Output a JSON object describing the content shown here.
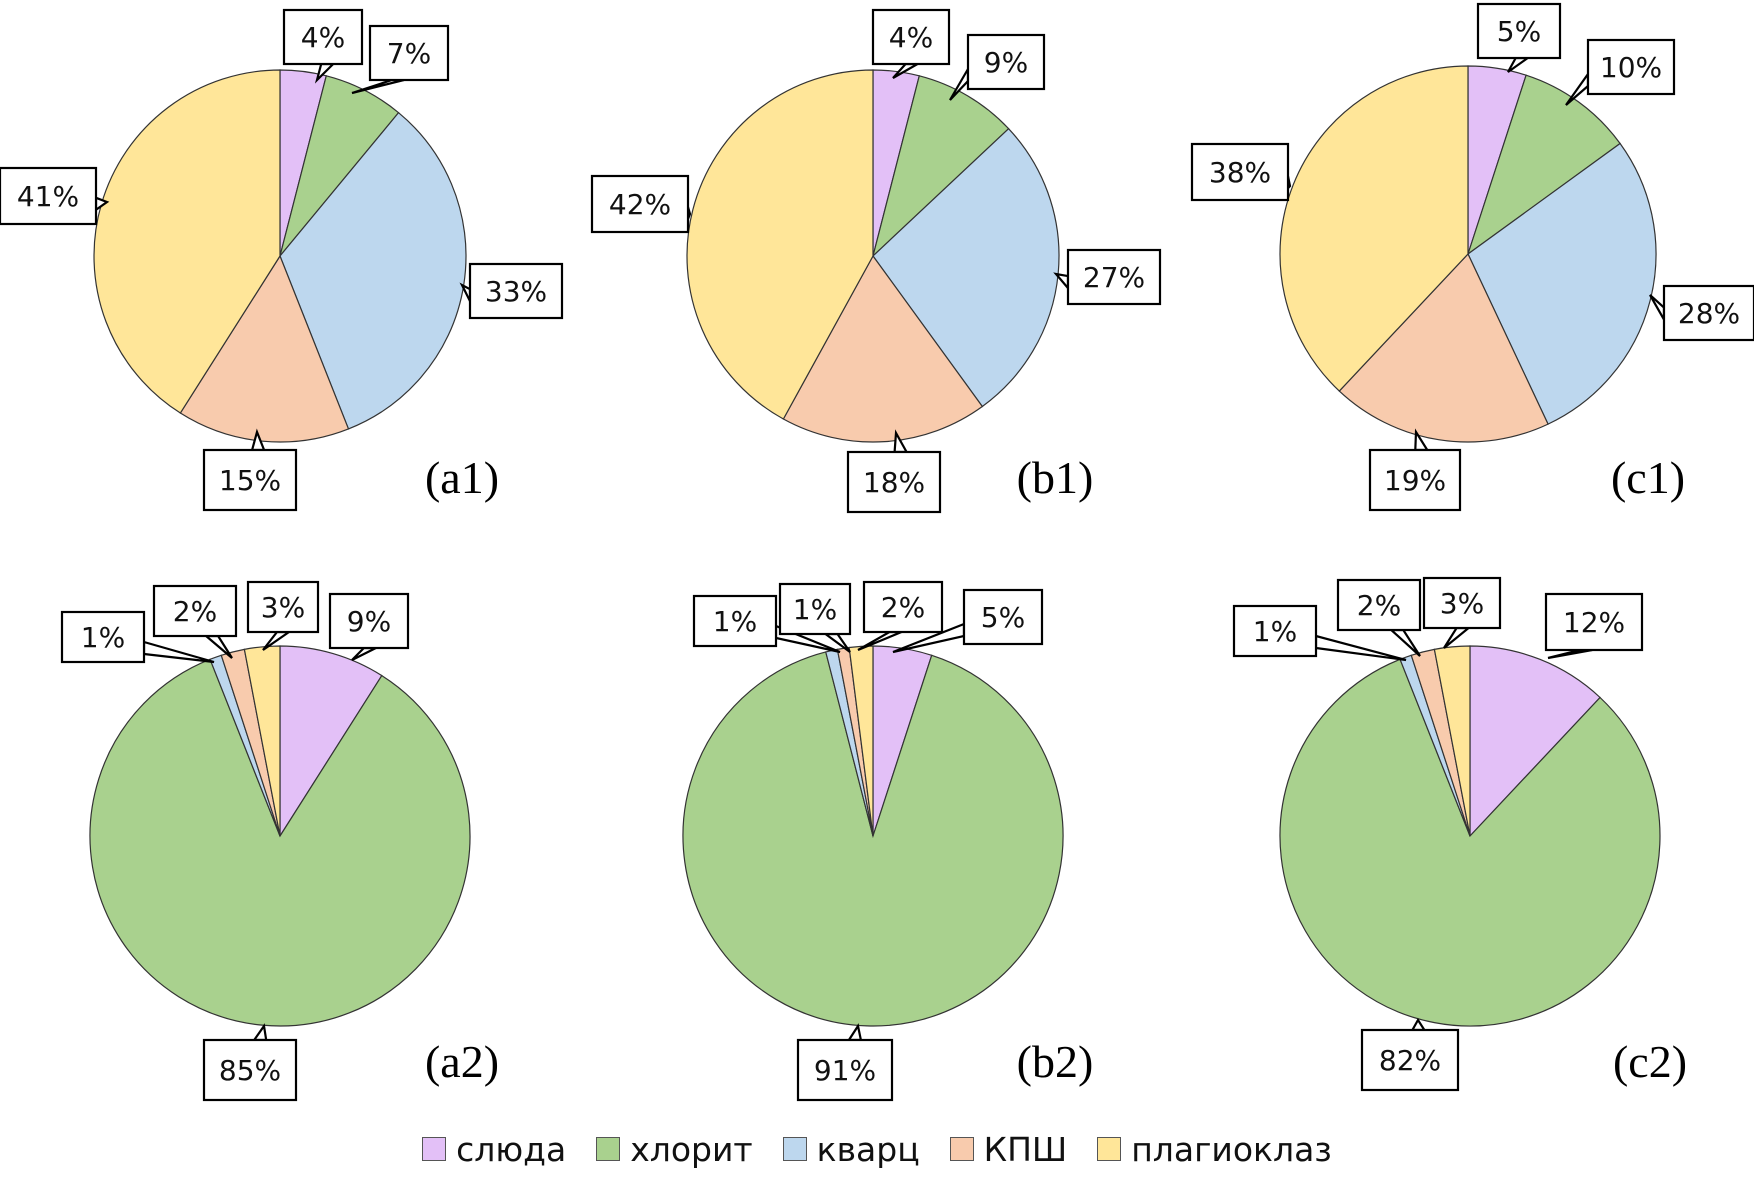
{
  "chart_data": [
    {
      "type": "pie",
      "panel": "(a1)",
      "categories": [
        "слюда",
        "хлорит",
        "кварц",
        "КПШ",
        "плагиоклаз"
      ],
      "values": [
        4,
        7,
        33,
        15,
        41
      ],
      "labels": [
        "4%",
        "7%",
        "33%",
        "15%",
        "41%"
      ]
    },
    {
      "type": "pie",
      "panel": "(b1)",
      "categories": [
        "слюда",
        "хлорит",
        "кварц",
        "КПШ",
        "плагиоклаз"
      ],
      "values": [
        4,
        9,
        27,
        18,
        42
      ],
      "labels": [
        "4%",
        "9%",
        "27%",
        "18%",
        "42%"
      ]
    },
    {
      "type": "pie",
      "panel": "(c1)",
      "categories": [
        "слюда",
        "хлорит",
        "кварц",
        "КПШ",
        "плагиоклаз"
      ],
      "values": [
        5,
        10,
        28,
        19,
        38
      ],
      "labels": [
        "5%",
        "10%",
        "28%",
        "19%",
        "38%"
      ]
    },
    {
      "type": "pie",
      "panel": "(a2)",
      "categories": [
        "слюда",
        "хлорит",
        "кварц",
        "КПШ",
        "плагиоклаз"
      ],
      "values": [
        9,
        85,
        1,
        2,
        3
      ],
      "labels": [
        "9%",
        "85%",
        "1%",
        "2%",
        "3%"
      ]
    },
    {
      "type": "pie",
      "panel": "(b2)",
      "categories": [
        "слюда",
        "хлорит",
        "кварц",
        "КПШ",
        "плагиоклаз"
      ],
      "values": [
        5,
        91,
        1,
        1,
        2
      ],
      "labels": [
        "5%",
        "91%",
        "1%",
        "1%",
        "2%"
      ]
    },
    {
      "type": "pie",
      "panel": "(c2)",
      "categories": [
        "слюда",
        "хлорит",
        "кварц",
        "КПШ",
        "плагиоклаз"
      ],
      "values": [
        12,
        82,
        1,
        2,
        3
      ],
      "labels": [
        "12%",
        "82%",
        "1%",
        "2%",
        "3%"
      ]
    }
  ],
  "legend": {
    "placement": "bottom-center",
    "items": [
      {
        "label": "слюда",
        "color": "#e3c0f7"
      },
      {
        "label": "хлорит",
        "color": "#a9d18e"
      },
      {
        "label": "кварц",
        "color": "#bdd7ee"
      },
      {
        "label": "КПШ",
        "color": "#f8cbad"
      },
      {
        "label": "плагиоклаз",
        "color": "#ffe699"
      }
    ]
  }
}
